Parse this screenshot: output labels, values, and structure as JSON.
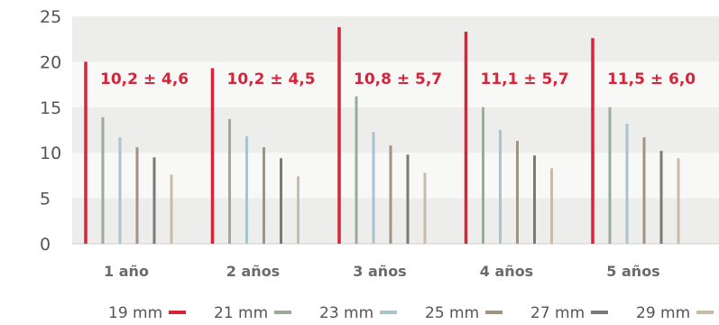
{
  "chart_data": {
    "type": "bar",
    "title": "",
    "xlabel": "",
    "ylabel": "",
    "ylim": [
      0,
      25
    ],
    "yticks": [
      0,
      5,
      10,
      15,
      20,
      25
    ],
    "grid": "alternating horizontal bands",
    "legend_position": "bottom-right",
    "categories": [
      "1 año",
      "2 años",
      "3 años",
      "4 años",
      "5 años"
    ],
    "series": [
      {
        "name": "19 mm",
        "color": "#d5253a",
        "values": [
          20.0,
          19.3,
          23.8,
          23.3,
          22.6
        ]
      },
      {
        "name": "21 mm",
        "color": "#9aab9a",
        "values": [
          13.9,
          13.7,
          16.2,
          15.0,
          15.0
        ]
      },
      {
        "name": "23 mm",
        "color": "#a8c4cf",
        "values": [
          11.7,
          11.8,
          12.3,
          12.5,
          13.2
        ]
      },
      {
        "name": "25 mm",
        "color": "#a09383",
        "values": [
          10.6,
          10.6,
          10.8,
          11.3,
          11.7
        ]
      },
      {
        "name": "27 mm",
        "color": "#7a7a7a",
        "values": [
          9.5,
          9.4,
          9.8,
          9.7,
          10.2
        ]
      },
      {
        "name": "29 mm",
        "color": "#c8bca8",
        "values": [
          7.6,
          7.4,
          7.8,
          8.3,
          9.4
        ]
      }
    ],
    "annotations": [
      "10,2 ± 4,6",
      "10,2 ± 4,5",
      "10,8 ± 5,7",
      "11,1 ± 5,7",
      "11,5 ± 6,0"
    ]
  }
}
